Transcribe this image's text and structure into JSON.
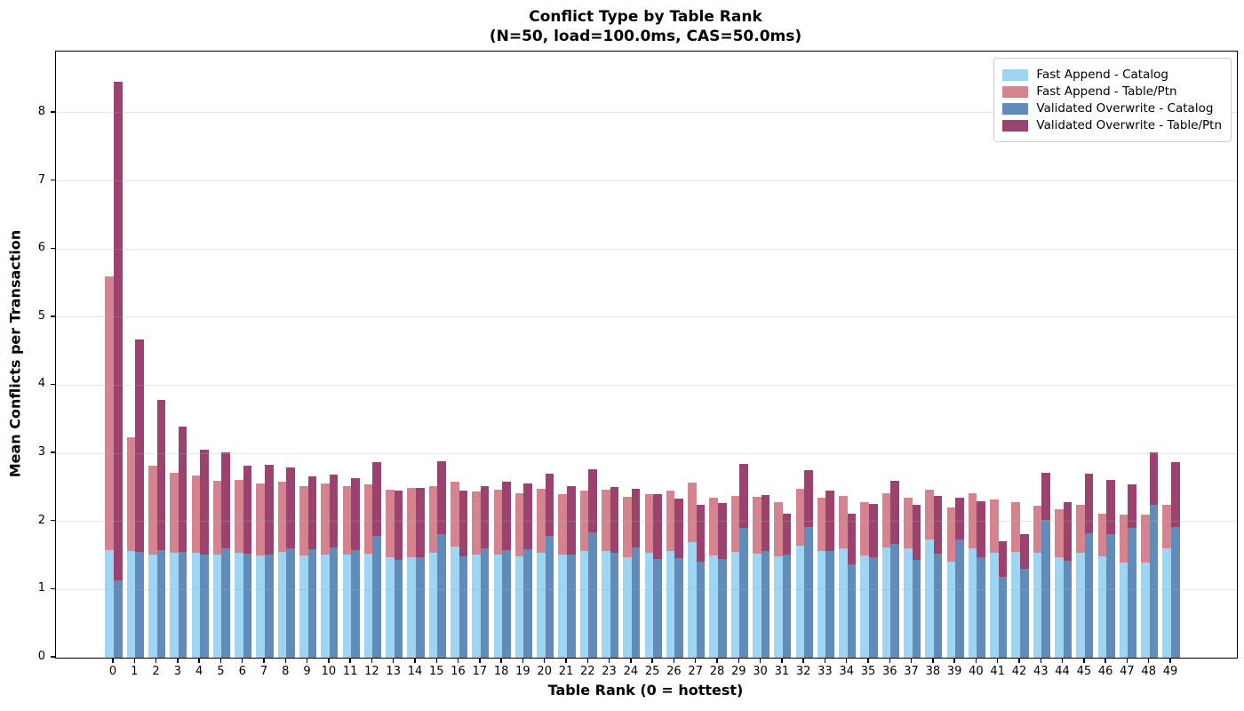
{
  "chart_data": {
    "type": "bar",
    "variant": "grouped-stacked",
    "title": "Conflict Type by Table Rank",
    "subtitle": "(N=50, load=100.0ms, CAS=50.0ms)",
    "xlabel": "Table Rank (0 = hottest)",
    "ylabel": "Mean Conflicts per Transaction",
    "ylim": [
      0,
      8.9
    ],
    "yticks": [
      "0",
      "1",
      "2",
      "3",
      "4",
      "5",
      "6",
      "7",
      "8"
    ],
    "grid": "horizontal",
    "legend_position": "top-right",
    "categories": [
      "0",
      "1",
      "2",
      "3",
      "4",
      "5",
      "6",
      "7",
      "8",
      "9",
      "10",
      "11",
      "12",
      "13",
      "14",
      "15",
      "16",
      "17",
      "18",
      "19",
      "20",
      "21",
      "22",
      "23",
      "24",
      "25",
      "26",
      "27",
      "28",
      "29",
      "30",
      "31",
      "32",
      "33",
      "34",
      "35",
      "36",
      "37",
      "38",
      "39",
      "40",
      "41",
      "42",
      "43",
      "44",
      "45",
      "46",
      "47",
      "48",
      "49"
    ],
    "series": [
      {
        "name": "Fast Append - Catalog",
        "color": "#9ed5f2",
        "bar": 0,
        "values": [
          1.58,
          1.56,
          1.52,
          1.54,
          1.54,
          1.51,
          1.54,
          1.5,
          1.55,
          1.5,
          1.52,
          1.51,
          1.53,
          1.48,
          1.48,
          1.54,
          1.63,
          1.51,
          1.52,
          1.49,
          1.54,
          1.51,
          1.56,
          1.56,
          1.48,
          1.54,
          1.57,
          1.7,
          1.5,
          1.55,
          1.53,
          1.49,
          1.65,
          1.56,
          1.6,
          1.5,
          1.62,
          1.61,
          1.73,
          1.41,
          1.61,
          1.54,
          1.55,
          1.54,
          1.47,
          1.54,
          1.49,
          1.4,
          1.4,
          1.61
        ]
      },
      {
        "name": "Fast Append - Table/Ptn",
        "color": "#d5838f",
        "bar": 0,
        "values": [
          4.02,
          1.68,
          1.3,
          1.18,
          1.14,
          1.09,
          1.07,
          1.06,
          1.04,
          1.02,
          1.04,
          1.01,
          1.01,
          0.99,
          1.01,
          0.98,
          0.96,
          0.93,
          0.95,
          0.93,
          0.94,
          0.89,
          0.9,
          0.91,
          0.88,
          0.86,
          0.89,
          0.87,
          0.85,
          0.82,
          0.83,
          0.79,
          0.83,
          0.79,
          0.78,
          0.79,
          0.8,
          0.74,
          0.74,
          0.8,
          0.81,
          0.78,
          0.74,
          0.69,
          0.71,
          0.7,
          0.63,
          0.7,
          0.7,
          0.63
        ]
      },
      {
        "name": "Validated Overwrite - Catalog",
        "color": "#618cba",
        "bar": 1,
        "values": [
          1.13,
          1.55,
          1.58,
          1.55,
          1.52,
          1.61,
          1.53,
          1.51,
          1.61,
          1.59,
          1.62,
          1.58,
          1.79,
          1.43,
          1.48,
          1.81,
          1.49,
          1.61,
          1.58,
          1.59,
          1.79,
          1.51,
          1.84,
          1.54,
          1.62,
          1.45,
          1.46,
          1.41,
          1.45,
          1.9,
          1.57,
          1.51,
          1.92,
          1.57,
          1.37,
          1.47,
          1.67,
          1.43,
          1.53,
          1.73,
          1.48,
          1.19,
          1.31,
          2.02,
          1.42,
          1.83,
          1.82,
          1.9,
          2.24,
          1.92
        ]
      },
      {
        "name": "Validated Overwrite - Table/Ptn",
        "color": "#9b436e",
        "bar": 1,
        "values": [
          7.33,
          3.12,
          2.21,
          1.84,
          1.53,
          1.41,
          1.29,
          1.32,
          1.18,
          1.07,
          1.07,
          1.06,
          1.08,
          1.03,
          1.01,
          1.07,
          0.97,
          0.91,
          1.0,
          0.97,
          0.91,
          1.01,
          0.93,
          0.96,
          0.86,
          0.95,
          0.88,
          0.83,
          0.82,
          0.94,
          0.82,
          0.61,
          0.84,
          0.88,
          0.75,
          0.79,
          0.93,
          0.82,
          0.85,
          0.62,
          0.82,
          0.52,
          0.5,
          0.7,
          0.87,
          0.87,
          0.79,
          0.65,
          0.78,
          0.95
        ]
      }
    ]
  }
}
